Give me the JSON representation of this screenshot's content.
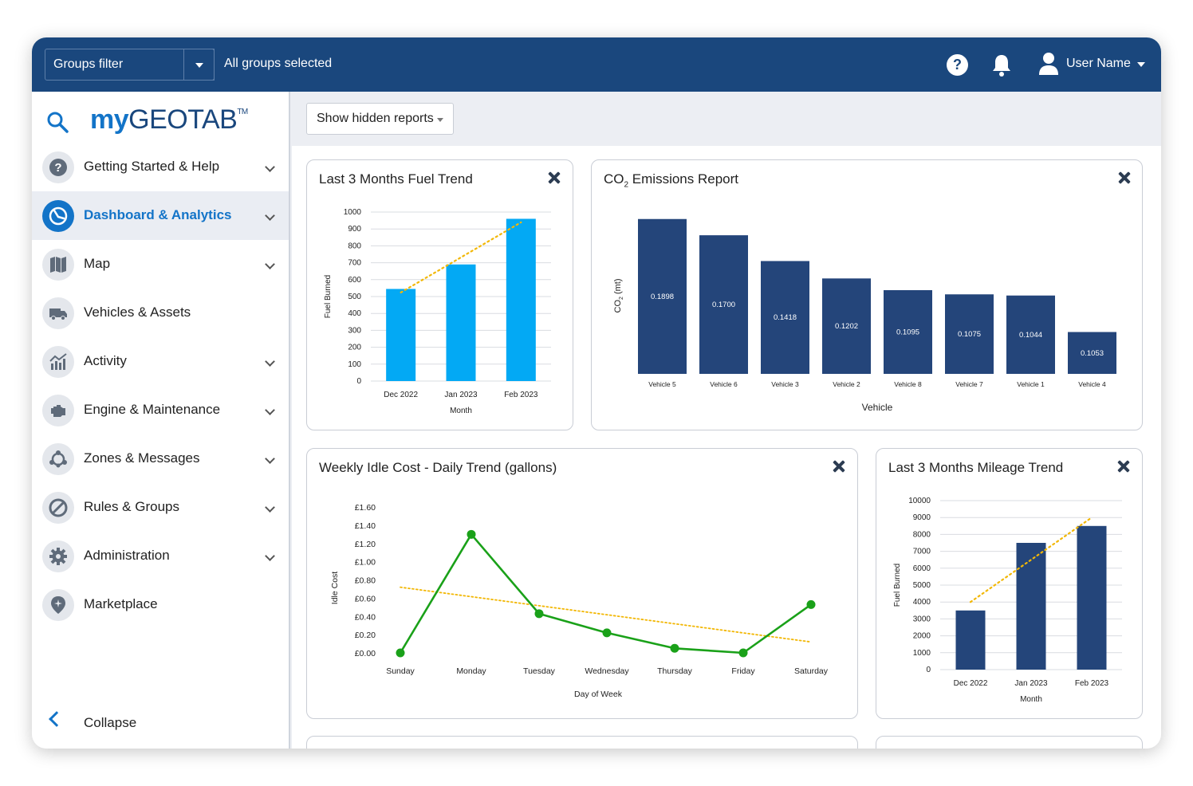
{
  "topbar": {
    "groups_filter_label": "Groups filter",
    "groups_selected": "All groups selected",
    "user_name": "User Name"
  },
  "sidebar": {
    "logo_my": "my",
    "logo_geotab": "GEOTAB",
    "logo_tm": "TM",
    "items": [
      {
        "label": "Getting Started & Help",
        "icon": "help-circle-icon",
        "active": false,
        "chevron": true
      },
      {
        "label": "Dashboard & Analytics",
        "icon": "dashboard-gauge-icon",
        "active": true,
        "chevron": true
      },
      {
        "label": "Map",
        "icon": "map-icon",
        "active": false,
        "chevron": true
      },
      {
        "label": "Vehicles & Assets",
        "icon": "truck-icon",
        "active": false,
        "chevron": false
      },
      {
        "label": "Activity",
        "icon": "activity-chart-icon",
        "active": false,
        "chevron": true
      },
      {
        "label": "Engine & Maintenance",
        "icon": "engine-icon",
        "active": false,
        "chevron": true
      },
      {
        "label": "Zones & Messages",
        "icon": "zones-network-icon",
        "active": false,
        "chevron": true
      },
      {
        "label": "Rules & Groups",
        "icon": "rules-prohibited-icon",
        "active": false,
        "chevron": true
      },
      {
        "label": "Administration",
        "icon": "gear-icon",
        "active": false,
        "chevron": true
      },
      {
        "label": "Marketplace",
        "icon": "marketplace-pin-icon",
        "active": false,
        "chevron": false
      }
    ],
    "collapse_label": "Collapse"
  },
  "toolbar": {
    "show_hidden_label": "Show hidden reports"
  },
  "cards": {
    "fuel": {
      "title": "Last 3 Months Fuel Trend"
    },
    "co2": {
      "title_pre": "CO",
      "title_sub": "2",
      "title_post": " Emissions Report"
    },
    "idle": {
      "title": "Weekly Idle Cost - Daily Trend (gallons)"
    },
    "mileage": {
      "title": "Last 3 Months Mileage Trend"
    }
  },
  "colors": {
    "topbar": "#1a477d",
    "accent": "#1374c8",
    "fuel_bar": "#03a9f4",
    "navy_bar": "#24457a",
    "line_green": "#1aa119",
    "trend_gold": "#f2b705"
  },
  "chart_data": [
    {
      "id": "fuel",
      "type": "bar",
      "categories": [
        "Dec 2022",
        "Jan 2023",
        "Feb 2023"
      ],
      "values": [
        545,
        690,
        960
      ],
      "xlabel": "Month",
      "ylabel": "Fuel Burned",
      "ylim": [
        0,
        1000
      ],
      "yticks": [
        "0",
        "100",
        "200",
        "300",
        "400",
        "500",
        "600",
        "700",
        "800",
        "900",
        "1000"
      ],
      "trendline": true,
      "grid": true
    },
    {
      "id": "co2",
      "type": "bar",
      "categories": [
        "Vehicle 5",
        "Vehicle 6",
        "Vehicle 3",
        "Vehicle 2",
        "Vehicle 8",
        "Vehicle 7",
        "Vehicle 1",
        "Vehicle 4"
      ],
      "values": [
        0.1898,
        0.17,
        0.1418,
        0.1202,
        0.1095,
        0.1075,
        0.1044,
        0.1053
      ],
      "labels": [
        "0.1898",
        "0.1700",
        "0.1418",
        "0.1202",
        "0.1095",
        "0.1075",
        "0.1044",
        "0.1053"
      ],
      "bar_levels": [
        0.925,
        0.828,
        0.674,
        0.57,
        0.5,
        0.475,
        0.468,
        0.25
      ],
      "xlabel": "Vehicle",
      "ylabel_pre": "CO",
      "ylabel_sub": "2",
      "ylabel_post": " (mt)",
      "grid": false
    },
    {
      "id": "idle",
      "type": "line",
      "categories": [
        "Sunday",
        "Monday",
        "Tuesday",
        "Wednesday",
        "Thursday",
        "Friday",
        "Saturday"
      ],
      "values": [
        0.0,
        1.3,
        0.43,
        0.22,
        0.05,
        0.0,
        0.53
      ],
      "trend": [
        0.72,
        0.12
      ],
      "xlabel": "Day of Week",
      "ylabel": "Idle Cost",
      "ylim": [
        0,
        1.6
      ],
      "yticks": [
        "£0.00",
        "£0.20",
        "£0.40",
        "£0.60",
        "£0.80",
        "£1.00",
        "£1.20",
        "£1.40",
        "£1.60"
      ],
      "grid": false
    },
    {
      "id": "mileage",
      "type": "bar",
      "categories": [
        "Dec 2022",
        "Jan 2023",
        "Feb 2023"
      ],
      "values": [
        3500,
        7500,
        8500
      ],
      "xlabel": "Month",
      "ylabel": "Fuel Burned",
      "ylim": [
        0,
        10000
      ],
      "yticks": [
        "0",
        "1000",
        "2000",
        "3000",
        "4000",
        "5000",
        "6000",
        "7000",
        "8000",
        "9000",
        "10000"
      ],
      "trendline": true,
      "grid": true
    }
  ]
}
